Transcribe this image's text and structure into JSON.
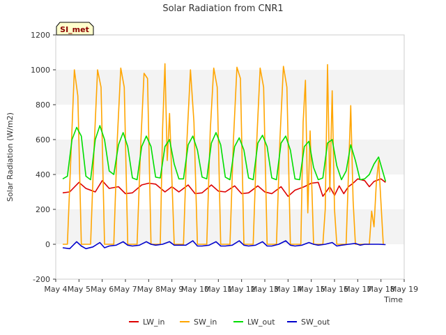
{
  "chart_data": {
    "type": "line",
    "title": "Solar Radiation from CNR1",
    "xlabel": "Time",
    "ylabel": "Solar Radiation (W/m2)",
    "site_badge": "SI_met",
    "x_tick_labels": [
      "May 4",
      "May 5",
      "May 6",
      "May 7",
      "May 8",
      "May 9",
      "May 10",
      "May 11",
      "May 12",
      "May 13",
      "May 14",
      "May 15",
      "May 16",
      "May 17",
      "May 18",
      "May 19"
    ],
    "x_range_days": [
      4,
      19
    ],
    "y_ticks": [
      -200,
      0,
      200,
      400,
      600,
      800,
      1000,
      1200
    ],
    "y_tick_labels": [
      "-200",
      "0",
      "200",
      "400",
      "600",
      "800",
      "1000",
      "1200"
    ],
    "ylim": [
      -200,
      1200
    ],
    "grid": "alternating horizontal bands",
    "legend_position": "bottom",
    "series": [
      {
        "name": "LW_in",
        "color": "#dd0000",
        "days": [
          4.3,
          4.6,
          5.0,
          5.3,
          5.7,
          6.0,
          6.3,
          6.7,
          7.0,
          7.3,
          7.7,
          8.0,
          8.3,
          8.7,
          9.0,
          9.3,
          9.7,
          10.0,
          10.3,
          10.7,
          11.0,
          11.3,
          11.7,
          12.0,
          12.3,
          12.7,
          13.0,
          13.3,
          13.7,
          14.0,
          14.3,
          14.7,
          15.0,
          15.3,
          15.5,
          15.8,
          16.0,
          16.2,
          16.4,
          16.6,
          16.8,
          17.0,
          17.3,
          17.5,
          17.7,
          18.0,
          18.2
        ],
        "values": [
          295,
          300,
          355,
          320,
          300,
          365,
          320,
          330,
          290,
          295,
          340,
          350,
          345,
          300,
          330,
          300,
          340,
          290,
          295,
          340,
          305,
          300,
          335,
          290,
          295,
          335,
          300,
          290,
          330,
          275,
          310,
          330,
          350,
          355,
          275,
          330,
          280,
          335,
          290,
          330,
          350,
          375,
          365,
          330,
          360,
          375,
          355
        ]
      },
      {
        "name": "SW_in",
        "color": "#ffa500",
        "days": [
          4.3,
          4.5,
          4.65,
          4.8,
          4.95,
          5.1,
          5.5,
          5.65,
          5.8,
          5.95,
          6.1,
          6.5,
          6.65,
          6.8,
          6.95,
          7.1,
          7.5,
          7.65,
          7.8,
          7.95,
          8.1,
          8.5,
          8.6,
          8.7,
          8.8,
          8.9,
          9.1,
          9.5,
          9.65,
          9.8,
          9.95,
          10.1,
          10.5,
          10.65,
          10.8,
          10.95,
          11.1,
          11.5,
          11.65,
          11.8,
          11.95,
          12.1,
          12.5,
          12.65,
          12.8,
          12.95,
          13.1,
          13.5,
          13.65,
          13.8,
          13.95,
          14.1,
          14.55,
          14.65,
          14.75,
          14.85,
          14.95,
          15.1,
          15.5,
          15.6,
          15.7,
          15.8,
          15.9,
          16.0,
          16.1,
          16.5,
          16.6,
          16.7,
          16.8,
          16.9,
          17.1,
          17.5,
          17.6,
          17.7,
          17.8,
          17.9,
          18.1
        ],
        "values": [
          0,
          0,
          500,
          1000,
          850,
          0,
          0,
          550,
          1000,
          900,
          0,
          0,
          600,
          1010,
          900,
          0,
          0,
          550,
          980,
          950,
          0,
          0,
          660,
          1035,
          480,
          750,
          0,
          0,
          600,
          1000,
          700,
          0,
          0,
          650,
          1010,
          900,
          0,
          0,
          600,
          1015,
          950,
          0,
          0,
          580,
          1010,
          900,
          0,
          0,
          600,
          1020,
          900,
          0,
          0,
          700,
          940,
          180,
          650,
          0,
          0,
          200,
          1030,
          300,
          880,
          200,
          0,
          0,
          400,
          795,
          250,
          0,
          0,
          0,
          190,
          100,
          350,
          480,
          0
        ]
      },
      {
        "name": "LW_out",
        "color": "#00dd00",
        "days": [
          4.3,
          4.5,
          4.7,
          4.9,
          5.1,
          5.3,
          5.5,
          5.7,
          5.9,
          6.1,
          6.3,
          6.5,
          6.7,
          6.9,
          7.1,
          7.3,
          7.5,
          7.7,
          7.9,
          8.1,
          8.3,
          8.5,
          8.7,
          8.9,
          9.1,
          9.3,
          9.5,
          9.7,
          9.9,
          10.1,
          10.3,
          10.5,
          10.7,
          10.9,
          11.1,
          11.3,
          11.5,
          11.7,
          11.9,
          12.1,
          12.3,
          12.5,
          12.7,
          12.9,
          13.1,
          13.3,
          13.5,
          13.7,
          13.9,
          14.1,
          14.3,
          14.5,
          14.7,
          14.9,
          15.1,
          15.3,
          15.5,
          15.7,
          15.9,
          16.1,
          16.3,
          16.5,
          16.7,
          16.9,
          17.1,
          17.3,
          17.5,
          17.7,
          17.9,
          18.2
        ],
        "values": [
          375,
          390,
          600,
          670,
          620,
          390,
          370,
          600,
          680,
          600,
          420,
          400,
          570,
          640,
          560,
          380,
          370,
          560,
          620,
          560,
          385,
          380,
          560,
          600,
          460,
          375,
          375,
          570,
          620,
          540,
          385,
          375,
          580,
          640,
          570,
          385,
          370,
          560,
          610,
          540,
          380,
          370,
          580,
          625,
          560,
          380,
          370,
          580,
          620,
          540,
          375,
          370,
          560,
          590,
          440,
          370,
          380,
          580,
          600,
          450,
          370,
          420,
          570,
          480,
          370,
          375,
          400,
          460,
          500,
          360
        ]
      },
      {
        "name": "SW_out",
        "color": "#0000cc",
        "days": [
          4.3,
          4.6,
          4.9,
          5.1,
          5.3,
          5.6,
          5.9,
          6.1,
          6.3,
          6.6,
          6.9,
          7.1,
          7.3,
          7.6,
          7.9,
          8.1,
          8.3,
          8.6,
          8.9,
          9.1,
          9.3,
          9.6,
          9.9,
          10.1,
          10.3,
          10.6,
          10.9,
          11.1,
          11.3,
          11.6,
          11.9,
          12.1,
          12.3,
          12.6,
          12.9,
          13.1,
          13.3,
          13.6,
          13.9,
          14.1,
          14.3,
          14.6,
          14.9,
          15.1,
          15.3,
          15.6,
          15.9,
          16.1,
          16.3,
          16.6,
          16.9,
          17.1,
          17.3,
          17.6,
          17.9,
          18.2
        ],
        "values": [
          -20,
          -25,
          15,
          -10,
          -25,
          -15,
          10,
          -20,
          -10,
          -5,
          15,
          -5,
          -10,
          -5,
          15,
          0,
          -5,
          0,
          15,
          -5,
          -5,
          -5,
          20,
          -10,
          -10,
          -5,
          15,
          -10,
          -10,
          -5,
          20,
          -5,
          -10,
          -5,
          15,
          -10,
          -10,
          0,
          20,
          -5,
          -10,
          -5,
          10,
          0,
          -5,
          0,
          10,
          -10,
          -5,
          0,
          5,
          -5,
          0,
          0,
          0,
          -2
        ]
      }
    ]
  }
}
